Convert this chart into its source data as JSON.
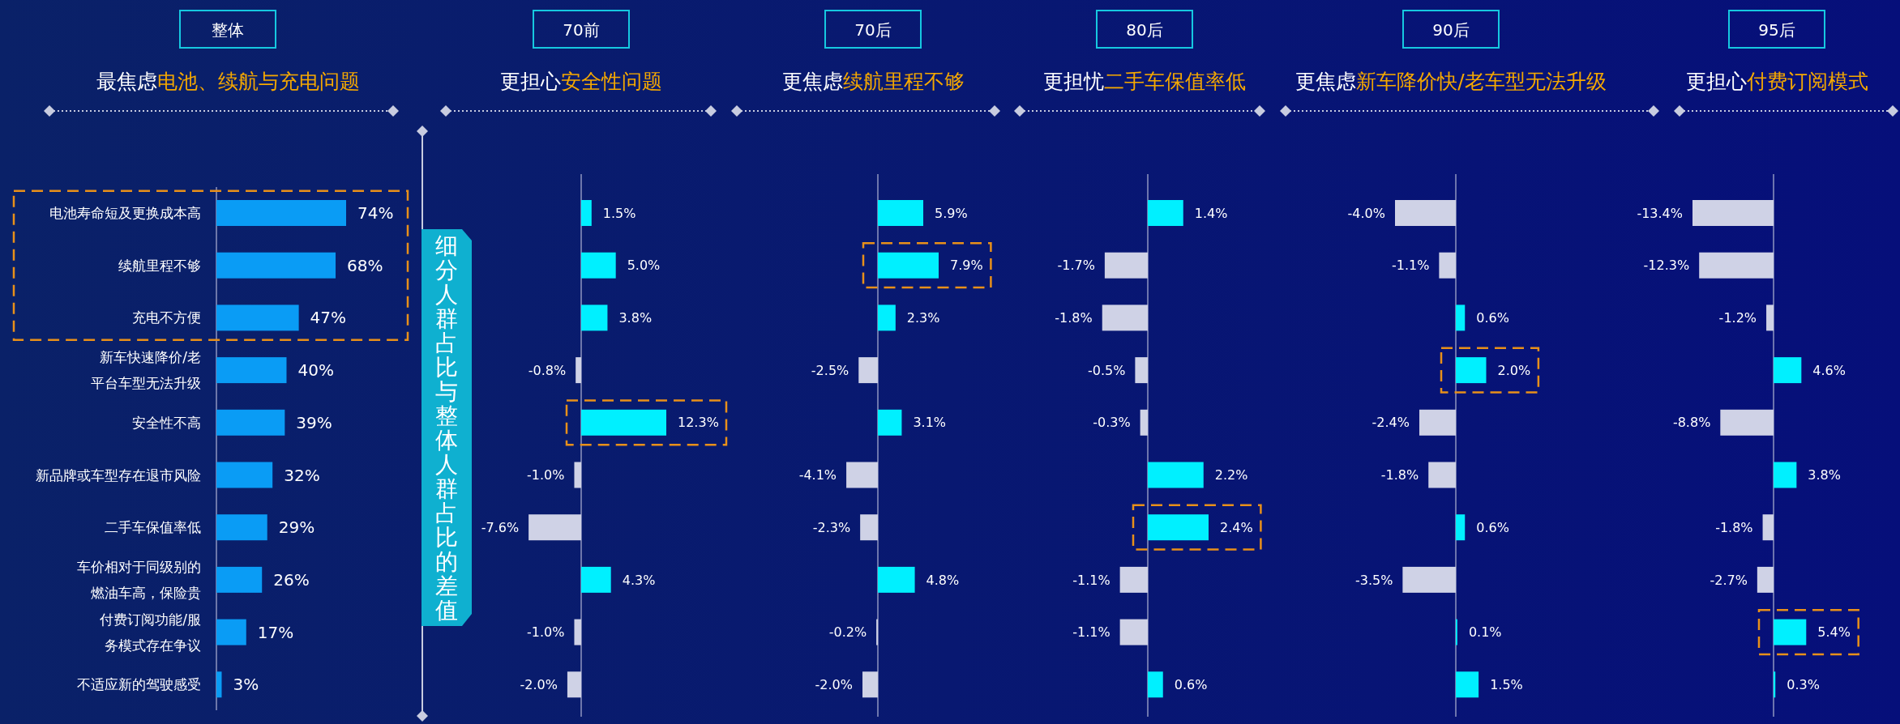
{
  "chart_data": [
    {
      "type": "bar",
      "orientation": "horizontal",
      "title": "整体",
      "subtitle": "最焦虑电池、续航与充电问题",
      "categories": [
        "电池寿命短及更换成本高",
        "续航里程不够",
        "充电不方便",
        "新车快速降价/老平台车型无法升级",
        "安全性不高",
        "新品牌或车型存在退市风险",
        "二手车保值率低",
        "车价相对于同级别的燃油车高，保险贵",
        "付费订阅功能/服务模式存在争议",
        "不适应新的驾驶感受"
      ],
      "values": [
        74,
        68,
        47,
        40,
        39,
        32,
        29,
        26,
        17,
        3
      ],
      "value_labels": [
        "74%",
        "68%",
        "47%",
        "40%",
        "39%",
        "32%",
        "29%",
        "26%",
        "17%",
        "3%"
      ],
      "colors": [
        "#0a9cf5",
        "#0a9cf5",
        "#0a9cf5",
        "#0a9cf5",
        "#0a9cf5",
        "#0a9cf5",
        "#0a9cf5",
        "#0a9cf5",
        "#0a9cf5",
        "#0a9cf5"
      ]
    },
    {
      "type": "bar",
      "orientation": "horizontal",
      "title": "70前",
      "subtitle": "更担心安全性问题",
      "categories": [
        null,
        null,
        null,
        null,
        null,
        null,
        null,
        null,
        null,
        null
      ],
      "values": [
        1.5,
        5.0,
        3.8,
        -0.8,
        12.3,
        -1.0,
        -7.6,
        4.3,
        -1.0,
        -2.0
      ],
      "value_labels": [
        "1.5%",
        "5.0%",
        "3.8%",
        "-0.8%",
        "12.3%",
        "-1.0%",
        "-7.6%",
        "4.3%",
        "-1.0%",
        "-2.0%"
      ],
      "colors": [
        "#00f0ff",
        "#00f0ff",
        "#00f0ff",
        "#cfd2e6",
        "#00f0ff",
        "#cfd2e6",
        "#cfd2e6",
        "#00f0ff",
        "#cfd2e6",
        "#cfd2e6"
      ],
      "ref_lines": [
        {
          "axis": "x",
          "value": 0,
          "color": "#8f96c0"
        }
      ],
      "annotations": [
        "细分人群占比与整体人群占比的差值"
      ]
    },
    {
      "type": "bar",
      "orientation": "horizontal",
      "title": "70后",
      "subtitle": "更焦虑续航里程不够",
      "categories": [
        null,
        null,
        null,
        null,
        null,
        null,
        null,
        null,
        null,
        null
      ],
      "values": [
        5.9,
        7.9,
        2.3,
        -2.5,
        3.1,
        -4.1,
        -2.3,
        4.8,
        -0.2,
        -2.0
      ],
      "value_labels": [
        "5.9%",
        "7.9%",
        "2.3%",
        "-2.5%",
        "3.1%",
        "-4.1%",
        "-2.3%",
        "4.8%",
        "-0.2%",
        "-2.0%"
      ],
      "colors": [
        "#00f0ff",
        "#00f0ff",
        "#00f0ff",
        "#cfd2e6",
        "#00f0ff",
        "#cfd2e6",
        "#cfd2e6",
        "#00f0ff",
        "#cfd2e6",
        "#cfd2e6"
      ],
      "ref_lines": [
        {
          "axis": "x",
          "value": 0,
          "color": "#8f96c0"
        }
      ]
    },
    {
      "type": "bar",
      "orientation": "horizontal",
      "title": "80后",
      "subtitle": "更担忧二手车保值率低",
      "categories": [
        null,
        null,
        null,
        null,
        null,
        null,
        null,
        null,
        null,
        null
      ],
      "values": [
        1.4,
        -1.7,
        -1.8,
        -0.5,
        -0.3,
        2.2,
        2.4,
        -1.1,
        -1.1,
        0.6
      ],
      "value_labels": [
        "1.4%",
        "-1.7%",
        "-1.8%",
        "-0.5%",
        "-0.3%",
        "2.2%",
        "2.4%",
        "-1.1%",
        "-1.1%",
        "0.6%"
      ],
      "colors": [
        "#00f0ff",
        "#cfd2e6",
        "#cfd2e6",
        "#cfd2e6",
        "#cfd2e6",
        "#00f0ff",
        "#00f0ff",
        "#cfd2e6",
        "#cfd2e6",
        "#00f0ff"
      ],
      "ref_lines": [
        {
          "axis": "x",
          "value": 0,
          "color": "#8f96c0"
        }
      ]
    },
    {
      "type": "bar",
      "orientation": "horizontal",
      "title": "90后",
      "subtitle": "更焦虑新车降价快/老车型无法升级",
      "categories": [
        null,
        null,
        null,
        null,
        null,
        null,
        null,
        null,
        null,
        null
      ],
      "values": [
        -4.0,
        -1.1,
        0.6,
        2.0,
        -2.4,
        -1.8,
        0.6,
        -3.5,
        0.1,
        1.5
      ],
      "value_labels": [
        "-4.0%",
        "-1.1%",
        "0.6%",
        "2.0%",
        "-2.4%",
        "-1.8%",
        "0.6%",
        "-3.5%",
        "0.1%",
        "1.5%"
      ],
      "colors": [
        "#cfd2e6",
        "#cfd2e6",
        "#00f0ff",
        "#00f0ff",
        "#cfd2e6",
        "#cfd2e6",
        "#00f0ff",
        "#cfd2e6",
        "#00f0ff",
        "#00f0ff"
      ],
      "ref_lines": [
        {
          "axis": "x",
          "value": 0,
          "color": "#8f96c0"
        }
      ]
    },
    {
      "type": "bar",
      "orientation": "horizontal",
      "title": "95后",
      "subtitle": "更担心付费订阅模式",
      "categories": [
        null,
        null,
        null,
        null,
        null,
        null,
        null,
        null,
        null,
        null
      ],
      "values": [
        -13.4,
        -12.3,
        -1.2,
        4.6,
        -8.8,
        3.8,
        -1.8,
        -2.7,
        5.4,
        0.3
      ],
      "value_labels": [
        "-13.4%",
        "-12.3%",
        "-1.2%",
        "4.6%",
        "-8.8%",
        "3.8%",
        "-1.8%",
        "-2.7%",
        "5.4%",
        "0.3%"
      ],
      "colors": [
        "#cfd2e6",
        "#cfd2e6",
        "#cfd2e6",
        "#00f0ff",
        "#cfd2e6",
        "#00f0ff",
        "#cfd2e6",
        "#cfd2e6",
        "#00f0ff",
        "#00f0ff"
      ],
      "ref_lines": [
        {
          "axis": "x",
          "value": 0,
          "color": "#8f96c0"
        }
      ]
    }
  ]
}
